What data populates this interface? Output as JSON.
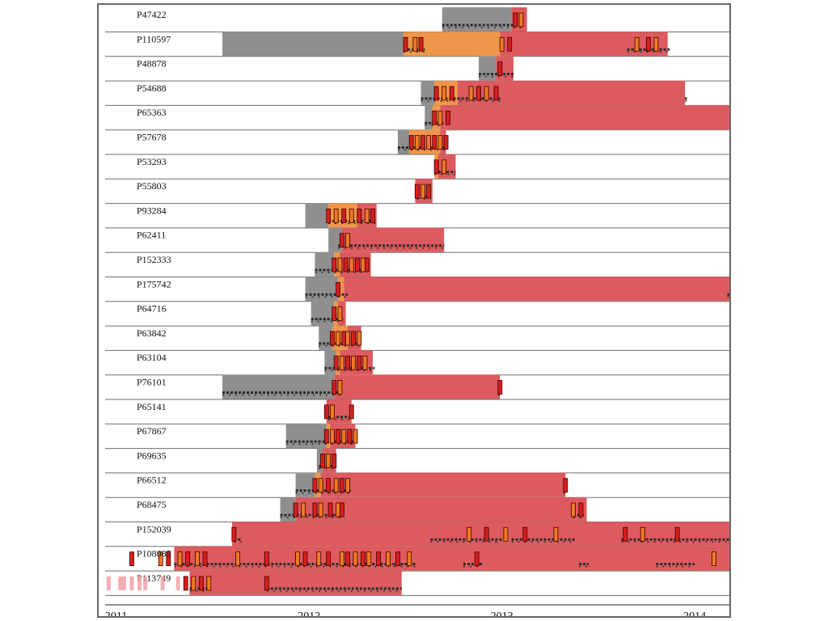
{
  "chart_data": {
    "type": "timeline",
    "title": "",
    "xlabel": "",
    "ylabel": "",
    "x_ticks": [
      "2011",
      "2012",
      "2013",
      "2014"
    ],
    "x_range": [
      2010.95,
      2014.18
    ],
    "colors": {
      "gray": "#8f8f8f",
      "orange": "#f0964a",
      "red": "#dd5a5e",
      "mark_red": "#d81e1e",
      "mark_orange": "#f07a20",
      "pale_marker": "#f2a0a8",
      "dots": "#2a2a2a",
      "row_line": "#6e6e6e"
    },
    "patients": [
      {
        "id": "P47422",
        "gray": [
          2012.69,
          2013.05
        ],
        "orange": null,
        "red": [
          2013.05,
          2013.13
        ],
        "marks": [
          2013.07,
          2013.1
        ],
        "dots": [
          [
            2012.69,
            2013.1
          ]
        ]
      },
      {
        "id": "P110597",
        "gray": [
          2011.55,
          2012.49
        ],
        "orange": [
          2012.49,
          2012.99
        ],
        "red": [
          2012.99,
          2013.86
        ],
        "marks": [
          2012.5,
          2012.55,
          2012.58,
          2013.0,
          2013.04,
          2013.7,
          2013.76,
          2013.8
        ],
        "dots": [
          [
            2012.49,
            2012.6
          ],
          [
            2013.65,
            2013.87
          ]
        ]
      },
      {
        "id": "P48878",
        "gray": [
          2012.88,
          2012.97
        ],
        "orange": null,
        "red": [
          2012.97,
          2013.06
        ],
        "marks": [
          2012.99
        ],
        "dots": [
          [
            2012.88,
            2013.06
          ]
        ]
      },
      {
        "id": "P54688",
        "gray": [
          2012.58,
          2012.65
        ],
        "orange": [
          2012.65,
          2012.77
        ],
        "red": [
          2012.77,
          2013.95
        ],
        "marks": [
          2012.66,
          2012.7,
          2012.74,
          2012.84,
          2012.88,
          2012.92,
          2012.97
        ],
        "dots": [
          [
            2012.58,
            2013.0
          ],
          [
            2013.95,
            2013.96
          ]
        ]
      },
      {
        "id": "P65363",
        "gray": [
          2012.6,
          2012.64
        ],
        "orange": [
          2012.64,
          2012.68
        ],
        "red": [
          2012.68,
          2014.18
        ],
        "marks": [
          2012.65,
          2012.68,
          2012.72
        ],
        "dots": [
          [
            2012.6,
            2012.7
          ]
        ]
      },
      {
        "id": "P57678",
        "gray": [
          2012.46,
          2012.52
        ],
        "orange": [
          2012.52,
          2012.68
        ],
        "red": [
          2012.68,
          2012.71
        ],
        "marks": [
          2012.53,
          2012.56,
          2012.59,
          2012.62,
          2012.65,
          2012.68,
          2012.71
        ],
        "dots": [
          [
            2012.46,
            2012.72
          ]
        ]
      },
      {
        "id": "P53293",
        "gray": null,
        "orange": [
          2012.65,
          2012.67
        ],
        "red": [
          2012.67,
          2012.76
        ],
        "marks": [
          2012.66,
          2012.7
        ],
        "dots": [
          [
            2012.65,
            2012.76
          ]
        ]
      },
      {
        "id": "P55803",
        "gray": null,
        "orange": null,
        "red": [
          2012.55,
          2012.64
        ],
        "marks": [
          2012.56,
          2012.59,
          2012.62
        ],
        "dots": [
          [
            2012.56,
            2012.63
          ]
        ]
      },
      {
        "id": "P93284",
        "gray": [
          2011.98,
          2012.1
        ],
        "orange": [
          2012.1,
          2012.25
        ],
        "red": [
          2012.25,
          2012.35
        ],
        "marks": [
          2012.1,
          2012.14,
          2012.18,
          2012.22,
          2012.26,
          2012.3,
          2012.33
        ],
        "dots": [
          [
            2012.1,
            2012.35
          ]
        ]
      },
      {
        "id": "P62411",
        "gray": [
          2012.1,
          2012.17
        ],
        "orange": null,
        "red": [
          2012.17,
          2012.7
        ],
        "marks": [
          2012.17,
          2012.2
        ],
        "dots": [
          [
            2012.15,
            2012.7
          ]
        ]
      },
      {
        "id": "P152333",
        "gray": [
          2012.03,
          2012.13
        ],
        "orange": [
          2012.13,
          2012.16
        ],
        "red": [
          2012.16,
          2012.32
        ],
        "marks": [
          2012.13,
          2012.16,
          2012.19,
          2012.22,
          2012.25,
          2012.28,
          2012.3
        ],
        "dots": [
          [
            2012.03,
            2012.3
          ]
        ]
      },
      {
        "id": "P175742",
        "gray": [
          2011.98,
          2012.15
        ],
        "orange": [
          2012.15,
          2012.18
        ],
        "red": [
          2012.18,
          2014.18
        ],
        "marks": [
          2012.15
        ],
        "dots": [
          [
            2011.98,
            2012.2
          ],
          [
            2014.17,
            2014.18
          ]
        ]
      },
      {
        "id": "P64716",
        "gray": [
          2012.01,
          2012.13
        ],
        "orange": [
          2012.13,
          2012.15
        ],
        "red": [
          2012.15,
          2012.19
        ],
        "marks": [
          2012.13,
          2012.16
        ],
        "dots": [
          [
            2012.01,
            2012.18
          ]
        ]
      },
      {
        "id": "P63842",
        "gray": [
          2012.05,
          2012.12
        ],
        "orange": [
          2012.12,
          2012.2
        ],
        "red": [
          2012.2,
          2012.27
        ],
        "marks": [
          2012.12,
          2012.15,
          2012.18,
          2012.2,
          2012.23,
          2012.26
        ],
        "dots": [
          [
            2012.05,
            2012.27
          ]
        ]
      },
      {
        "id": "P63104",
        "gray": [
          2012.08,
          2012.14
        ],
        "orange": [
          2012.14,
          2012.16
        ],
        "red": [
          2012.16,
          2012.33
        ],
        "marks": [
          2012.14,
          2012.17,
          2012.2,
          2012.23,
          2012.26,
          2012.29
        ],
        "dots": [
          [
            2012.08,
            2012.34
          ]
        ]
      },
      {
        "id": "P76101",
        "gray": [
          2011.55,
          2012.13
        ],
        "orange": null,
        "red": [
          2012.13,
          2012.99
        ],
        "marks": [
          2012.13,
          2012.16,
          2012.99
        ],
        "dots": [
          [
            2011.55,
            2012.18
          ],
          [
            2012.98,
            2013.0
          ]
        ]
      },
      {
        "id": "P65141",
        "gray": null,
        "orange": null,
        "red": [
          2012.09,
          2012.22
        ],
        "marks": [
          2012.09,
          2012.12,
          2012.22
        ],
        "dots": [
          [
            2012.1,
            2012.23
          ]
        ]
      },
      {
        "id": "P67867",
        "gray": [
          2011.88,
          2012.09
        ],
        "orange": [
          2012.09,
          2012.11
        ],
        "red": [
          2012.11,
          2012.24
        ],
        "marks": [
          2012.09,
          2012.12,
          2012.15,
          2012.18,
          2012.21,
          2012.24
        ],
        "dots": [
          [
            2011.88,
            2012.24
          ]
        ]
      },
      {
        "id": "P69635",
        "gray": [
          2012.04,
          2012.07
        ],
        "orange": null,
        "red": [
          2012.07,
          2012.14
        ],
        "marks": [
          2012.07,
          2012.1,
          2012.13
        ],
        "dots": [
          [
            2012.05,
            2012.14
          ]
        ]
      },
      {
        "id": "P66512",
        "gray": [
          2011.93,
          2012.03
        ],
        "orange": [
          2012.03,
          2012.06
        ],
        "red": [
          2012.06,
          2013.33
        ],
        "marks": [
          2012.03,
          2012.06,
          2012.1,
          2012.14,
          2012.17,
          2012.2,
          2013.33
        ],
        "dots": [
          [
            2011.93,
            2012.22
          ],
          [
            2013.32,
            2013.34
          ]
        ]
      },
      {
        "id": "P68475",
        "gray": [
          2011.85,
          2011.93
        ],
        "orange": null,
        "red": [
          2011.93,
          2013.44
        ],
        "marks": [
          2011.93,
          2011.97,
          2012.03,
          2012.06,
          2012.11,
          2012.15,
          2012.17,
          2013.37,
          2013.41
        ],
        "dots": [
          [
            2011.85,
            2012.18
          ],
          [
            2013.37,
            2013.43
          ]
        ]
      },
      {
        "id": "P152039",
        "gray": null,
        "orange": null,
        "red": [
          2011.6,
          2014.18
        ],
        "marks": [
          2011.61,
          2012.83,
          2012.92,
          2013.02,
          2013.12,
          2013.28,
          2013.64,
          2013.73,
          2013.91
        ],
        "dots": [
          [
            2011.61,
            2011.65
          ],
          [
            2012.63,
            2013.0
          ],
          [
            2013.05,
            2013.38
          ],
          [
            2013.62,
            2014.18
          ]
        ]
      },
      {
        "id": "P108085",
        "gray": null,
        "orange": null,
        "red": [
          2011.3,
          2014.18
        ],
        "marks": [
          2011.08,
          2011.23,
          2011.27,
          2011.33,
          2011.37,
          2011.42,
          2011.46,
          2011.63,
          2011.78,
          2011.94,
          2011.98,
          2012.05,
          2012.1,
          2012.17,
          2012.2,
          2012.24,
          2012.28,
          2012.31,
          2012.36,
          2012.41,
          2012.46,
          2012.52,
          2012.87,
          2014.1
        ],
        "dots": [
          [
            2011.3,
            2012.55
          ],
          [
            2012.8,
            2012.9
          ],
          [
            2013.4,
            2013.45
          ],
          [
            2013.8,
            2014.0
          ]
        ]
      },
      {
        "id": "P113749",
        "gray": null,
        "orange": null,
        "red": [
          2011.38,
          2012.48
        ],
        "marks": [
          2011.36,
          2011.4,
          2011.44,
          2011.48,
          2011.78
        ],
        "dots": [
          [
            2011.38,
            2011.48
          ],
          [
            2011.78,
            2012.48
          ]
        ]
      }
    ],
    "pale_markers": [
      2010.96,
      2011.02,
      2011.04,
      2011.08,
      2011.12,
      2011.15,
      2011.24,
      2011.32
    ]
  }
}
